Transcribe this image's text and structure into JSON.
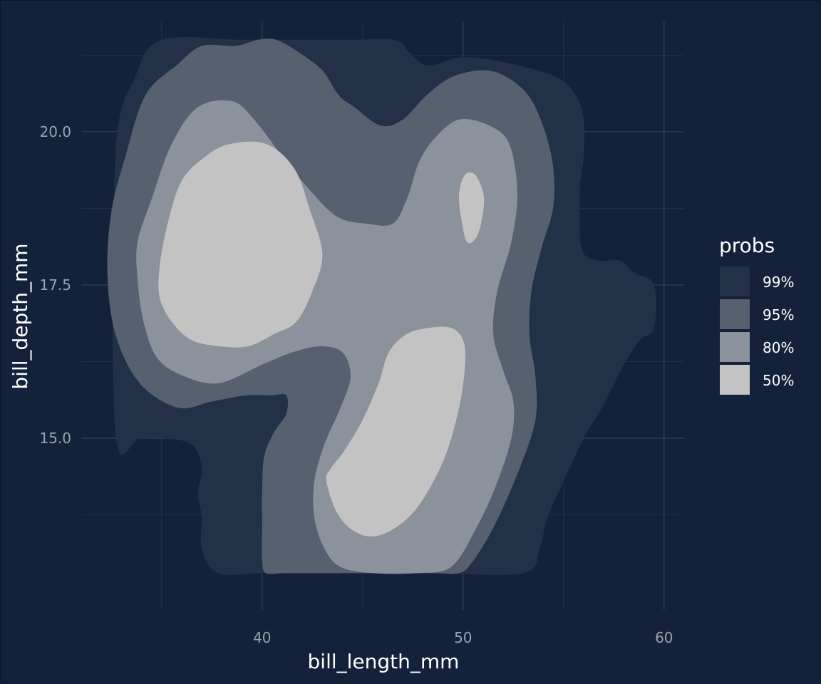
{
  "chart_data": {
    "type": "area",
    "subtype": "2d-density-contours-filled",
    "title": "",
    "xlabel": "bill_length_mm",
    "ylabel": "bill_depth_mm",
    "xlim": [
      31,
      61
    ],
    "ylim": [
      12.2,
      21.8
    ],
    "x_ticks": [
      40,
      50,
      60
    ],
    "x_tick_labels": [
      "40",
      "50",
      "60"
    ],
    "y_ticks": [
      15.0,
      17.5,
      20.0
    ],
    "y_tick_labels": [
      "15.0",
      "17.5",
      "20.0"
    ],
    "x_minor_ticks": [
      35,
      45,
      55
    ],
    "y_minor_ticks": [
      13.75,
      16.25,
      18.75,
      21.25
    ],
    "grid": true,
    "legend": {
      "title": "probs",
      "position": "right",
      "entries": [
        "99%",
        "95%",
        "80%",
        "50%"
      ]
    },
    "colors": {
      "background": "#13223a",
      "grid": "#3a4a60",
      "level_99": "#223048",
      "level_95": "#56606e",
      "level_80": "#8c929b",
      "level_50": "#c3c3c3"
    },
    "series": [
      {
        "name": "99%",
        "level": 0.99,
        "regions": [
          [
            [
              32.7,
              19.6
            ],
            [
              33.7,
              20.9
            ],
            [
              35.0,
              21.5
            ],
            [
              38.9,
              21.5
            ],
            [
              40.3,
              21.5
            ],
            [
              41.8,
              21.5
            ],
            [
              44.5,
              21.5
            ],
            [
              46.6,
              21.5
            ],
            [
              47.3,
              21.3
            ],
            [
              48.0,
              21.1
            ],
            [
              48.7,
              21.1
            ],
            [
              49.6,
              21.2
            ],
            [
              50.8,
              21.2
            ],
            [
              52.5,
              21.1
            ],
            [
              54.6,
              20.9
            ],
            [
              55.6,
              20.6
            ],
            [
              56.0,
              20.2
            ],
            [
              56.0,
              19.6
            ],
            [
              55.8,
              19.0
            ],
            [
              55.9,
              18.1
            ],
            [
              56.7,
              17.9
            ],
            [
              57.8,
              17.9
            ],
            [
              58.5,
              17.7
            ],
            [
              59.5,
              17.5
            ],
            [
              59.5,
              16.8
            ],
            [
              58.8,
              16.6
            ],
            [
              58.0,
              16.2
            ],
            [
              56.9,
              15.5
            ],
            [
              56.0,
              15.0
            ],
            [
              55.0,
              14.3
            ],
            [
              54.2,
              13.7
            ],
            [
              53.8,
              13.2
            ],
            [
              53.0,
              12.8
            ],
            [
              48.4,
              12.8
            ],
            [
              45.1,
              12.8
            ],
            [
              43.0,
              12.8
            ],
            [
              41.6,
              12.8
            ],
            [
              40.0,
              12.8
            ],
            [
              37.8,
              12.8
            ],
            [
              37.0,
              13.2
            ],
            [
              37.0,
              13.7
            ],
            [
              36.8,
              14.1
            ],
            [
              37.0,
              14.5
            ],
            [
              36.5,
              14.9
            ],
            [
              35.0,
              15.0
            ],
            [
              33.9,
              15.0
            ],
            [
              32.7,
              15.1
            ]
          ]
        ]
      },
      {
        "name": "95%",
        "level": 0.95,
        "regions": [
          [
            [
              34.2,
              20.6
            ],
            [
              35.8,
              21.1
            ],
            [
              37.0,
              21.4
            ],
            [
              38.7,
              21.4
            ],
            [
              39.8,
              21.5
            ],
            [
              40.7,
              21.5
            ],
            [
              41.8,
              21.3
            ],
            [
              43.0,
              21.0
            ],
            [
              43.8,
              20.6
            ],
            [
              44.6,
              20.4
            ],
            [
              45.9,
              20.1
            ],
            [
              47.0,
              20.2
            ],
            [
              48.2,
              20.6
            ],
            [
              49.5,
              20.9
            ],
            [
              51.2,
              21.0
            ],
            [
              52.6,
              20.8
            ],
            [
              53.6,
              20.4
            ],
            [
              54.4,
              19.6
            ],
            [
              54.5,
              18.8
            ],
            [
              53.9,
              18.1
            ],
            [
              53.4,
              17.4
            ],
            [
              53.3,
              16.7
            ],
            [
              53.6,
              16.0
            ],
            [
              53.6,
              15.3
            ],
            [
              52.8,
              14.5
            ],
            [
              51.6,
              13.6
            ],
            [
              50.5,
              13.0
            ],
            [
              49.8,
              12.8
            ],
            [
              48.4,
              12.8
            ],
            [
              45.1,
              12.8
            ],
            [
              43.6,
              12.8
            ],
            [
              42.0,
              12.8
            ],
            [
              41.1,
              12.8
            ],
            [
              40.2,
              12.8
            ],
            [
              40.0,
              13.0
            ],
            [
              40.0,
              13.6
            ],
            [
              40.0,
              14.1
            ],
            [
              40.1,
              14.7
            ],
            [
              40.6,
              15.1
            ],
            [
              41.2,
              15.4
            ],
            [
              41.2,
              15.7
            ],
            [
              40.4,
              15.7
            ],
            [
              39.2,
              15.7
            ],
            [
              37.5,
              15.6
            ],
            [
              35.8,
              15.5
            ],
            [
              33.9,
              15.9
            ],
            [
              32.7,
              16.7
            ],
            [
              32.3,
              17.7
            ],
            [
              32.5,
              18.7
            ],
            [
              33.2,
              19.6
            ]
          ]
        ]
      },
      {
        "name": "80%",
        "level": 0.8,
        "regions": [
          [
            [
              33.8,
              18.2
            ],
            [
              34.5,
              18.9
            ],
            [
              35.5,
              19.8
            ],
            [
              36.8,
              20.4
            ],
            [
              38.5,
              20.5
            ],
            [
              39.6,
              20.2
            ],
            [
              41.0,
              19.6
            ],
            [
              42.5,
              19.0
            ],
            [
              43.8,
              18.6
            ],
            [
              45.2,
              18.5
            ],
            [
              46.5,
              18.5
            ],
            [
              47.2,
              18.9
            ],
            [
              47.8,
              19.5
            ],
            [
              48.6,
              19.9
            ],
            [
              49.8,
              20.2
            ],
            [
              51.3,
              20.1
            ],
            [
              52.3,
              19.8
            ],
            [
              52.7,
              19.0
            ],
            [
              52.4,
              18.2
            ],
            [
              51.7,
              17.4
            ],
            [
              51.5,
              16.7
            ],
            [
              52.0,
              16.1
            ],
            [
              52.5,
              15.6
            ],
            [
              52.4,
              15.0
            ],
            [
              51.6,
              14.2
            ],
            [
              50.6,
              13.5
            ],
            [
              49.4,
              12.9
            ],
            [
              47.7,
              12.8
            ],
            [
              45.5,
              12.8
            ],
            [
              43.9,
              12.9
            ],
            [
              43.1,
              13.2
            ],
            [
              42.6,
              13.7
            ],
            [
              42.6,
              14.3
            ],
            [
              43.1,
              14.9
            ],
            [
              43.9,
              15.5
            ],
            [
              44.4,
              16.0
            ],
            [
              44.0,
              16.4
            ],
            [
              42.9,
              16.5
            ],
            [
              41.5,
              16.4
            ],
            [
              40.0,
              16.2
            ],
            [
              37.9,
              15.9
            ],
            [
              36.2,
              16.0
            ],
            [
              34.8,
              16.3
            ],
            [
              34.1,
              16.9
            ],
            [
              33.8,
              17.6
            ]
          ]
        ]
      },
      {
        "name": "50%",
        "level": 0.5,
        "regions": [
          [
            [
              34.9,
              17.8
            ],
            [
              35.3,
              18.5
            ],
            [
              36.0,
              19.2
            ],
            [
              37.2,
              19.6
            ],
            [
              38.4,
              19.8
            ],
            [
              40.2,
              19.8
            ],
            [
              41.6,
              19.4
            ],
            [
              42.4,
              18.7
            ],
            [
              43.0,
              18.0
            ],
            [
              42.5,
              17.4
            ],
            [
              41.7,
              16.9
            ],
            [
              40.6,
              16.7
            ],
            [
              39.3,
              16.5
            ],
            [
              37.9,
              16.5
            ],
            [
              36.5,
              16.6
            ],
            [
              35.5,
              16.9
            ],
            [
              34.9,
              17.3
            ]
          ],
          [
            [
              50.1,
              19.3
            ],
            [
              50.6,
              19.3
            ],
            [
              51.0,
              19.0
            ],
            [
              51.0,
              18.7
            ],
            [
              50.7,
              18.3
            ],
            [
              50.2,
              18.2
            ],
            [
              49.9,
              18.6
            ],
            [
              49.8,
              19.0
            ]
          ],
          [
            [
              43.2,
              14.3
            ],
            [
              43.7,
              13.8
            ],
            [
              44.5,
              13.5
            ],
            [
              45.6,
              13.4
            ],
            [
              46.9,
              13.6
            ],
            [
              48.0,
              14.0
            ],
            [
              49.1,
              14.7
            ],
            [
              49.8,
              15.5
            ],
            [
              50.1,
              16.2
            ],
            [
              50.0,
              16.6
            ],
            [
              49.4,
              16.8
            ],
            [
              48.3,
              16.8
            ],
            [
              47.2,
              16.7
            ],
            [
              46.3,
              16.4
            ],
            [
              45.8,
              15.9
            ],
            [
              45.0,
              15.3
            ],
            [
              44.1,
              14.8
            ],
            [
              43.4,
              14.5
            ]
          ]
        ]
      }
    ]
  }
}
